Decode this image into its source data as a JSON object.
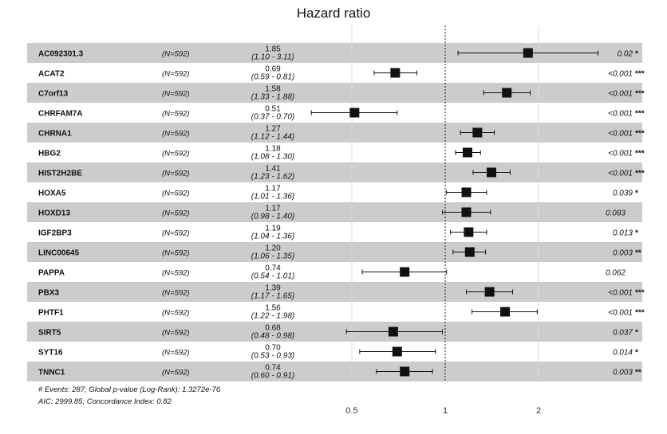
{
  "chart_data": {
    "type": "forest",
    "title": "Hazard ratio",
    "x_scale": "log",
    "x_ticks": [
      0.5,
      1,
      2
    ],
    "x_tick_labels": [
      "0.5",
      "1",
      "2"
    ],
    "reference_line": 1,
    "rows": [
      {
        "label": "AC092301.3",
        "n": "(N=592)",
        "hr": 1.85,
        "lo": 1.1,
        "hi": 3.11,
        "hr_text": "1.85",
        "ci_text": "(1.10 - 3.11)",
        "p_text": "0.02",
        "stars": "*"
      },
      {
        "label": "ACAT2",
        "n": "(N=592)",
        "hr": 0.69,
        "lo": 0.59,
        "hi": 0.81,
        "hr_text": "0.69",
        "ci_text": "(0.59 - 0.81)",
        "p_text": "<0.001",
        "stars": "***"
      },
      {
        "label": "C7orf13",
        "n": "(N=592)",
        "hr": 1.58,
        "lo": 1.33,
        "hi": 1.88,
        "hr_text": "1.58",
        "ci_text": "(1.33 - 1.88)",
        "p_text": "<0.001",
        "stars": "***"
      },
      {
        "label": "CHRFAM7A",
        "n": "(N=592)",
        "hr": 0.51,
        "lo": 0.37,
        "hi": 0.7,
        "hr_text": "0.51",
        "ci_text": "(0.37 - 0.70)",
        "p_text": "<0.001",
        "stars": "***"
      },
      {
        "label": "CHRNA1",
        "n": "(N=592)",
        "hr": 1.27,
        "lo": 1.12,
        "hi": 1.44,
        "hr_text": "1.27",
        "ci_text": "(1.12 - 1.44)",
        "p_text": "<0.001",
        "stars": "***"
      },
      {
        "label": "HBG2",
        "n": "(N=592)",
        "hr": 1.18,
        "lo": 1.08,
        "hi": 1.3,
        "hr_text": "1.18",
        "ci_text": "(1.08 - 1.30)",
        "p_text": "<0.001",
        "stars": "***"
      },
      {
        "label": "HIST2H2BE",
        "n": "(N=592)",
        "hr": 1.41,
        "lo": 1.23,
        "hi": 1.62,
        "hr_text": "1.41",
        "ci_text": "(1.23 - 1.62)",
        "p_text": "<0.001",
        "stars": "***"
      },
      {
        "label": "HOXA5",
        "n": "(N=592)",
        "hr": 1.17,
        "lo": 1.01,
        "hi": 1.36,
        "hr_text": "1.17",
        "ci_text": "(1.01 - 1.36)",
        "p_text": "0.039",
        "stars": "*"
      },
      {
        "label": "HOXD13",
        "n": "(N=592)",
        "hr": 1.17,
        "lo": 0.98,
        "hi": 1.4,
        "hr_text": "1.17",
        "ci_text": "(0.98 - 1.40)",
        "p_text": "0.083",
        "stars": ""
      },
      {
        "label": "IGF2BP3",
        "n": "(N=592)",
        "hr": 1.19,
        "lo": 1.04,
        "hi": 1.36,
        "hr_text": "1.19",
        "ci_text": "(1.04 - 1.36)",
        "p_text": "0.013",
        "stars": "*"
      },
      {
        "label": "LINC00645",
        "n": "(N=592)",
        "hr": 1.2,
        "lo": 1.06,
        "hi": 1.35,
        "hr_text": "1.20",
        "ci_text": "(1.06 - 1.35)",
        "p_text": "0.003",
        "stars": "**"
      },
      {
        "label": "PAPPA",
        "n": "(N=592)",
        "hr": 0.74,
        "lo": 0.54,
        "hi": 1.01,
        "hr_text": "0.74",
        "ci_text": "(0.54 - 1.01)",
        "p_text": "0.062",
        "stars": ""
      },
      {
        "label": "PBX3",
        "n": "(N=592)",
        "hr": 1.39,
        "lo": 1.17,
        "hi": 1.65,
        "hr_text": "1.39",
        "ci_text": "(1.17 - 1.65)",
        "p_text": "<0.001",
        "stars": "***"
      },
      {
        "label": "PHTF1",
        "n": "(N=592)",
        "hr": 1.56,
        "lo": 1.22,
        "hi": 1.98,
        "hr_text": "1.56",
        "ci_text": "(1.22 - 1.98)",
        "p_text": "<0.001",
        "stars": "***"
      },
      {
        "label": "SIRT5",
        "n": "(N=592)",
        "hr": 0.68,
        "lo": 0.48,
        "hi": 0.98,
        "hr_text": "0.68",
        "ci_text": "(0.48 - 0.98)",
        "p_text": "0.037",
        "stars": "*"
      },
      {
        "label": "SYT16",
        "n": "(N=592)",
        "hr": 0.7,
        "lo": 0.53,
        "hi": 0.93,
        "hr_text": "0.70",
        "ci_text": "(0.53 - 0.93)",
        "p_text": "0.014",
        "stars": "*"
      },
      {
        "label": "TNNC1",
        "n": "(N=592)",
        "hr": 0.74,
        "lo": 0.6,
        "hi": 0.91,
        "hr_text": "0.74",
        "ci_text": "(0.60 - 0.91)",
        "p_text": "0.003",
        "stars": "**"
      }
    ],
    "footnotes": [
      "# Events: 287; Global p-value (Log-Rank): 1.3272e-76",
      "AIC: 2999.85; Concordance Index: 0.82"
    ],
    "colors": {
      "band": "#cccccc",
      "grid": "#d9d9d9",
      "ink": "#111111"
    }
  }
}
